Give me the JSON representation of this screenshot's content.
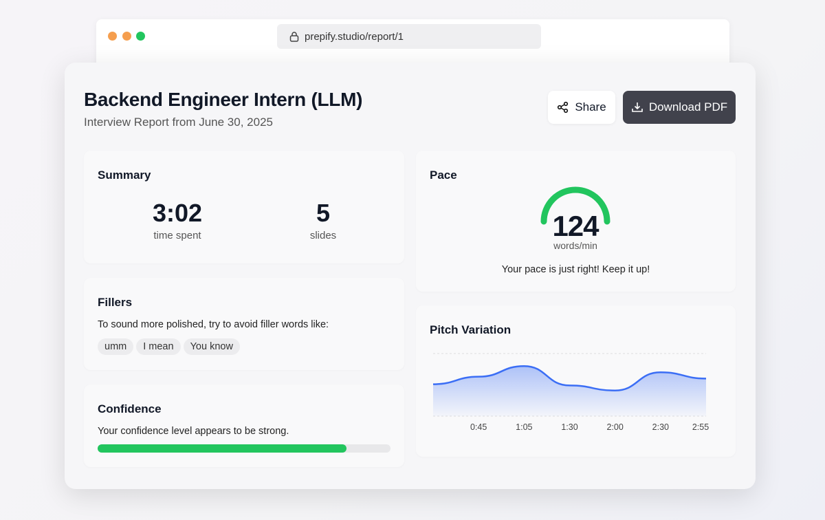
{
  "browser": {
    "url": "prepify.studio/report/1",
    "dot_colors": [
      "#f59e4e",
      "#f59e4e",
      "#22c55e"
    ]
  },
  "header": {
    "title": "Backend Engineer Intern (LLM)",
    "subtitle": "Interview Report from June 30, 2025",
    "share_label": "Share",
    "download_label": "Download PDF"
  },
  "summary": {
    "title": "Summary",
    "time_value": "3:02",
    "time_label": "time spent",
    "slides_value": "5",
    "slides_label": "slides"
  },
  "fillers": {
    "title": "Fillers",
    "text": "To sound more polished, try to avoid filler words like:",
    "words": [
      "umm",
      "I mean",
      "You know"
    ]
  },
  "confidence": {
    "title": "Confidence",
    "text": "Your confidence level appears to be strong.",
    "level_percent": 85,
    "color": "#22c55e"
  },
  "pace": {
    "title": "Pace",
    "value": "124",
    "unit": "words/min",
    "message": "Your pace is just right! Keep it up!",
    "color": "#22c55e"
  },
  "chart_data": {
    "type": "area",
    "title": "Pitch Variation",
    "categories": [
      "",
      "0:45",
      "1:05",
      "1:30",
      "2:00",
      "2:30",
      "2:55"
    ],
    "values": [
      51,
      63,
      80,
      49,
      41,
      70,
      60
    ],
    "ylim": [
      0,
      100
    ],
    "grid": "horizontal-dashed",
    "color": "#3b6ef5"
  }
}
